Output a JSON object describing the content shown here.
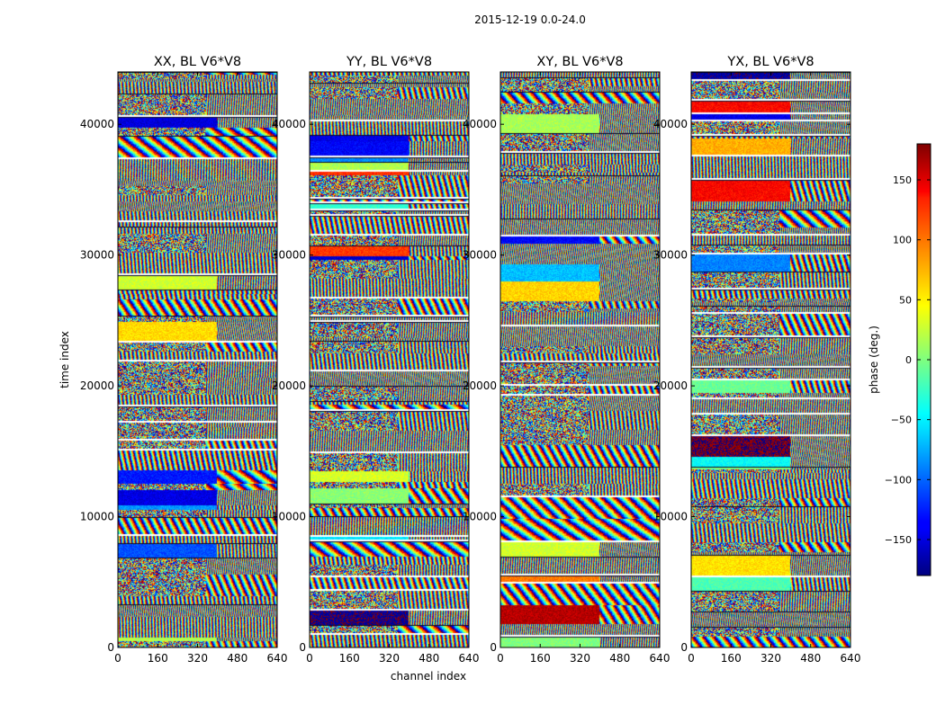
{
  "figure_title": "2015-12-19 0.0-24.0",
  "chart_data": [
    {
      "type": "heatmap",
      "title": "XX, BL V6*V8",
      "xlabel": "channel index",
      "ylabel": "time index",
      "xlim": [
        0,
        640
      ],
      "ylim": [
        0,
        44000
      ],
      "xticks": [
        "0",
        "160",
        "320",
        "480",
        "640"
      ],
      "yticks": [
        "0",
        "10000",
        "20000",
        "30000",
        "40000"
      ],
      "value_label": "phase (deg.)",
      "value_range": [
        -180,
        180
      ],
      "colormap": "jet"
    },
    {
      "type": "heatmap",
      "title": "YY, BL V6*V8",
      "xlabel": "channel index",
      "ylabel": "time index",
      "xlim": [
        0,
        640
      ],
      "ylim": [
        0,
        44000
      ],
      "xticks": [
        "0",
        "160",
        "320",
        "480",
        "640"
      ],
      "yticks": [
        "0",
        "10000",
        "20000",
        "30000",
        "40000"
      ],
      "value_label": "phase (deg.)",
      "value_range": [
        -180,
        180
      ],
      "colormap": "jet"
    },
    {
      "type": "heatmap",
      "title": "XY, BL V6*V8",
      "xlabel": "channel index",
      "ylabel": "time index",
      "xlim": [
        0,
        640
      ],
      "ylim": [
        0,
        44000
      ],
      "xticks": [
        "0",
        "160",
        "320",
        "480",
        "640"
      ],
      "yticks": [
        "0",
        "10000",
        "20000",
        "30000",
        "40000"
      ],
      "value_label": "phase (deg.)",
      "value_range": [
        -180,
        180
      ],
      "colormap": "jet"
    },
    {
      "type": "heatmap",
      "title": "YX, BL V6*V8",
      "xlabel": "channel index",
      "ylabel": "time index",
      "xlim": [
        0,
        640
      ],
      "ylim": [
        0,
        44000
      ],
      "xticks": [
        "0",
        "160",
        "320",
        "480",
        "640"
      ],
      "yticks": [
        "0",
        "10000",
        "20000",
        "30000",
        "40000"
      ],
      "value_label": "phase (deg.)",
      "value_range": [
        -180,
        180
      ],
      "colormap": "jet"
    }
  ],
  "colorbar": {
    "label": "phase (deg.)",
    "ticks": [
      150,
      100,
      50,
      0,
      -50,
      -100,
      -150
    ],
    "tick_labels": [
      "150",
      "100",
      "50",
      "0",
      "−50",
      "−100",
      "−150"
    ],
    "range": [
      -180,
      180
    ]
  },
  "x_axis_label": "channel index",
  "y_axis_label": "time index"
}
